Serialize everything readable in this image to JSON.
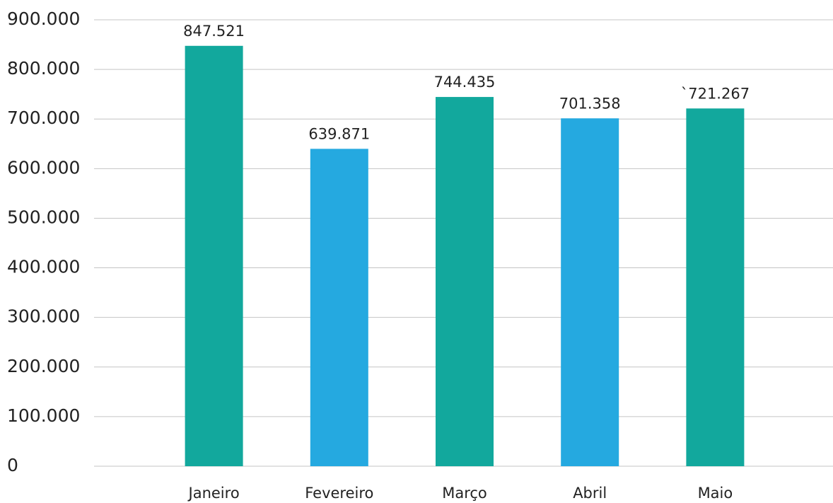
{
  "chart_data": {
    "type": "bar",
    "categories": [
      "Janeiro",
      "Fevereiro",
      "Março",
      "Abril",
      "Maio"
    ],
    "values": [
      847521,
      639871,
      744435,
      701358,
      721267
    ],
    "value_labels": [
      "847.521",
      "639.871",
      "744.435",
      "701.358",
      "`721.267"
    ],
    "colors": [
      "#12a89d",
      "#25a9e0",
      "#12a89d",
      "#25a9e0",
      "#12a89d"
    ],
    "ylim": [
      0,
      900000
    ],
    "yticks": [
      0,
      {
        "value": 100000,
        "label": "100.000"
      },
      {
        "value": 200000,
        "label": "200.000"
      },
      {
        "value": 300000,
        "label": "300.000"
      },
      {
        "value": 400000,
        "label": "400.000"
      },
      {
        "value": 500000,
        "label": "500.000"
      },
      {
        "value": 600000,
        "label": "600.000"
      },
      {
        "value": 700000,
        "label": "700.000"
      },
      {
        "value": 800000,
        "label": "800.000"
      },
      {
        "value": 900000,
        "label": "900.000"
      }
    ],
    "grid": true
  }
}
